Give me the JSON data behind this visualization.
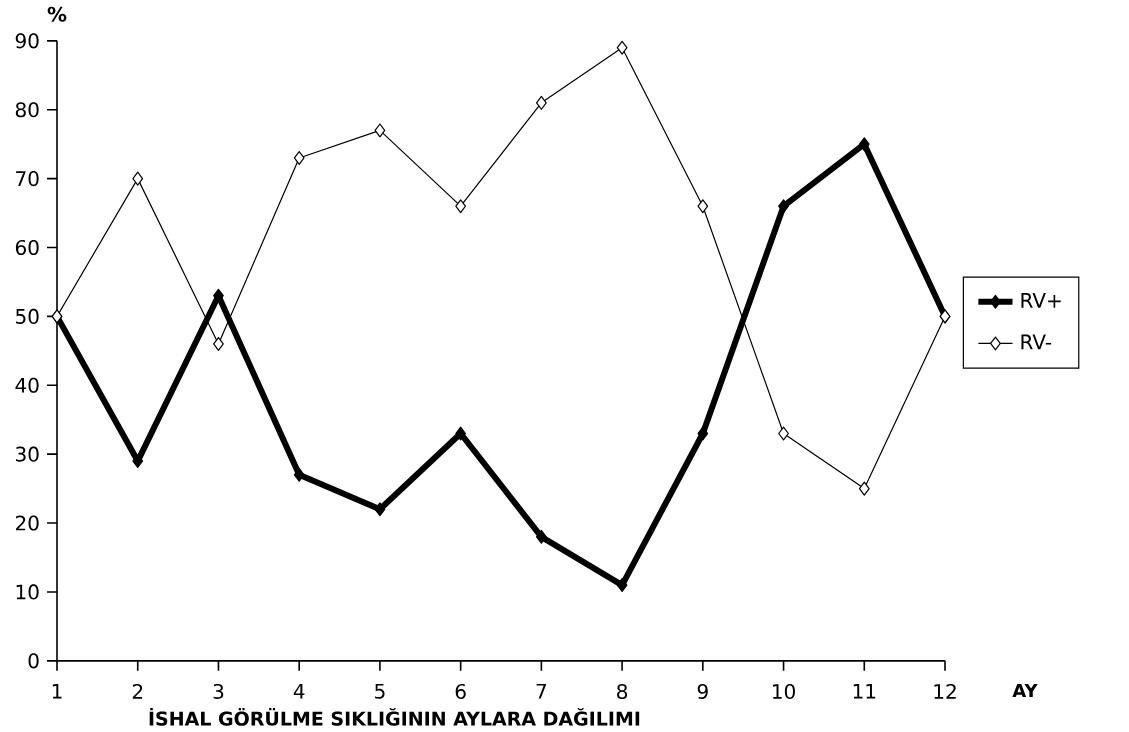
{
  "chart_data": {
    "type": "line",
    "title": "İSHAL GÖRÜLME SIKLIĞININ AYLARA DAĞILIMI",
    "xlabel": "AY",
    "ylabel": "%",
    "x": [
      1,
      2,
      3,
      4,
      5,
      6,
      7,
      8,
      9,
      10,
      11,
      12
    ],
    "series": [
      {
        "name": "RV+",
        "color": "#000000",
        "values": [
          50,
          29,
          53,
          27,
          22,
          33,
          18,
          11,
          33,
          66,
          75,
          50
        ]
      },
      {
        "name": "RV-",
        "color": "#000000",
        "values": [
          50,
          70,
          46,
          73,
          77,
          66,
          81,
          89,
          66,
          33,
          25,
          50
        ]
      }
    ],
    "xlim": [
      1,
      12
    ],
    "xticks": [
      1,
      2,
      3,
      4,
      5,
      6,
      7,
      8,
      9,
      10,
      11,
      12
    ],
    "ylim": [
      0,
      90
    ],
    "yticks": [
      0,
      10,
      20,
      30,
      40,
      50,
      60,
      70,
      80,
      90
    ],
    "grid": false,
    "legend": "right",
    "marker": "diamond",
    "line_style": "solid"
  }
}
